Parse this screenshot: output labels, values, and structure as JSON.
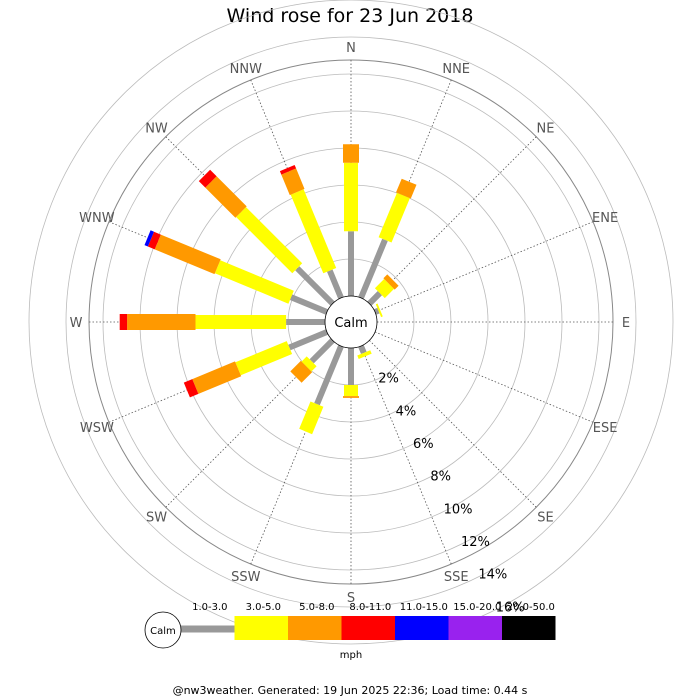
{
  "title": "Wind rose for 23 Jun 2018",
  "footer": "@nw3weather. Generated: 19 Jun 2025 22:36; Load time: 0.44 s",
  "chart_data": {
    "type": "windrose",
    "title": "Wind rose for 23 Jun 2018",
    "directions": [
      "N",
      "NNE",
      "NE",
      "ENE",
      "E",
      "ESE",
      "SE",
      "SSE",
      "S",
      "SSW",
      "SW",
      "WSW",
      "W",
      "WNW",
      "NW",
      "NNW"
    ],
    "radial_ticks": [
      "2%",
      "4%",
      "6%",
      "8%",
      "10%",
      "12%",
      "14%",
      "16%"
    ],
    "radial_max": 16,
    "calm_label": "Calm",
    "unit_label": "mph",
    "grid": true,
    "speed_bins": [
      {
        "label": "1.0-3.0",
        "color": "#999999"
      },
      {
        "label": "3.0-5.0",
        "color": "#ffff00"
      },
      {
        "label": "5.0-8.0",
        "color": "#ff9900"
      },
      {
        "label": "8.0-11.0",
        "color": "#ff0000"
      },
      {
        "label": "11.0-15.0",
        "color": "#0000ff"
      },
      {
        "label": "15.0-20.0",
        "color": "#9922ee"
      },
      {
        "label": "20.0-50.0",
        "color": "#000000"
      }
    ],
    "series": [
      {
        "direction": "N",
        "values": [
          3.5,
          3.7,
          1.0,
          0,
          0,
          0,
          0
        ]
      },
      {
        "direction": "NNE",
        "values": [
          3.4,
          2.6,
          0.8,
          0,
          0,
          0,
          0
        ]
      },
      {
        "direction": "NE",
        "values": [
          0.8,
          0.7,
          0.3,
          0,
          0,
          0,
          0
        ]
      },
      {
        "direction": "ENE",
        "values": [
          0.2,
          0.1,
          0,
          0,
          0,
          0,
          0
        ]
      },
      {
        "direction": "E",
        "values": [
          0,
          0,
          0,
          0,
          0,
          0,
          0
        ]
      },
      {
        "direction": "ESE",
        "values": [
          0,
          0,
          0,
          0,
          0,
          0,
          0
        ]
      },
      {
        "direction": "SE",
        "values": [
          0,
          0,
          0,
          0,
          0,
          0,
          0
        ]
      },
      {
        "direction": "SSE",
        "values": [
          0.4,
          0.2,
          0,
          0,
          0,
          0,
          0
        ]
      },
      {
        "direction": "S",
        "values": [
          2.0,
          0.6,
          0.1,
          0,
          0,
          0,
          0
        ]
      },
      {
        "direction": "SSW",
        "values": [
          3.4,
          1.6,
          0,
          0,
          0,
          0,
          0
        ]
      },
      {
        "direction": "SW",
        "values": [
          1.6,
          0.4,
          0.8,
          0,
          0,
          0,
          0
        ]
      },
      {
        "direction": "WSW",
        "values": [
          2.2,
          3.0,
          2.5,
          0.5,
          0,
          0,
          0
        ]
      },
      {
        "direction": "W",
        "values": [
          2.1,
          4.9,
          3.7,
          0.4,
          0,
          0,
          0
        ]
      },
      {
        "direction": "WNW",
        "values": [
          2.1,
          4.3,
          3.5,
          0.4,
          0.2,
          0,
          0
        ]
      },
      {
        "direction": "NW",
        "values": [
          2.7,
          4.3,
          2.3,
          0.5,
          0,
          0,
          0
        ]
      },
      {
        "direction": "NNW",
        "values": [
          1.6,
          4.6,
          1.2,
          0.2,
          0,
          0,
          0
        ]
      }
    ]
  }
}
